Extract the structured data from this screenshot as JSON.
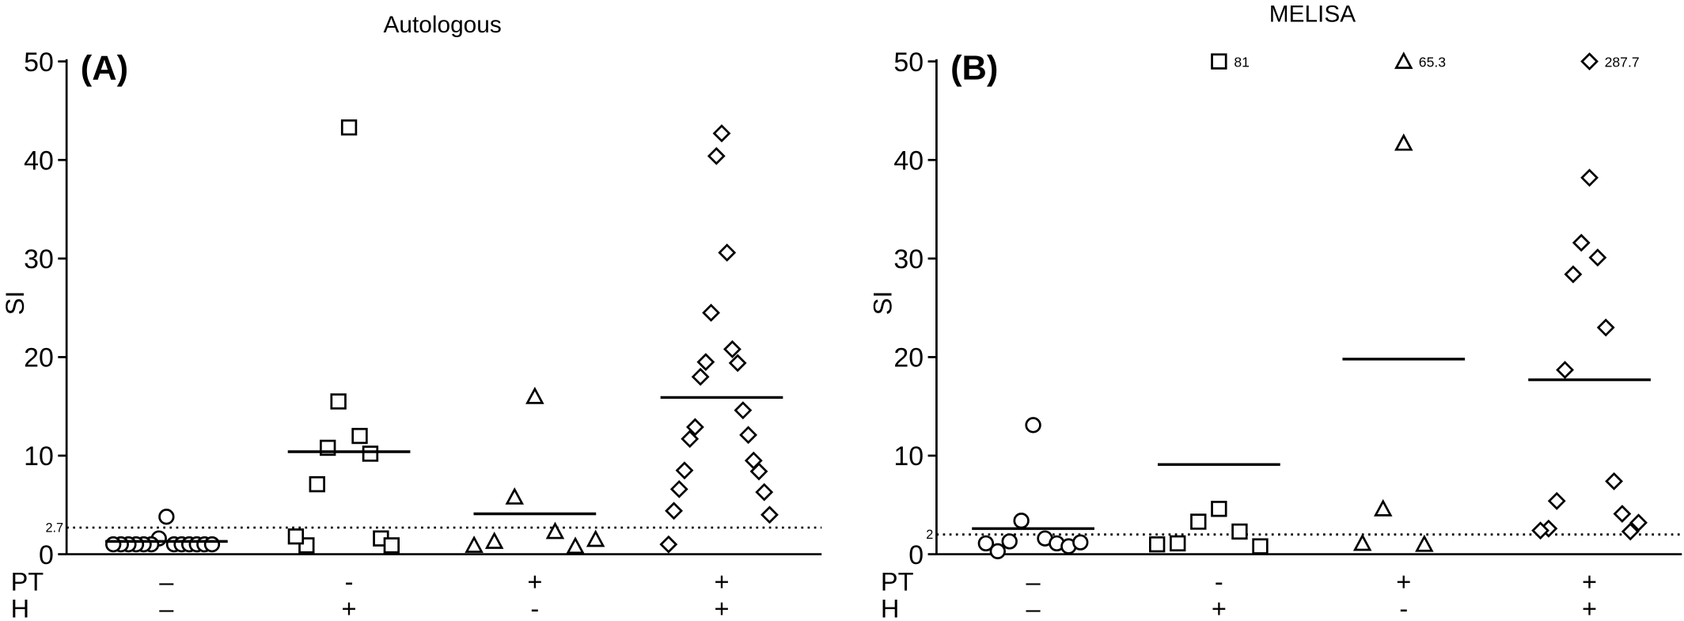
{
  "chart_data": [
    {
      "type": "scatter",
      "title": "Autologous",
      "panel_label": "(A)",
      "ylabel": "SI",
      "ylim": [
        0,
        50
      ],
      "yticks": [
        0,
        10,
        20,
        30,
        40,
        50
      ],
      "threshold": 2.7,
      "row_labels": [
        "PT",
        "H"
      ],
      "pt": [
        "–",
        "-",
        "+",
        "+"
      ],
      "h": [
        "–",
        "+",
        "-",
        "+"
      ],
      "groups": [
        {
          "marker": "circle",
          "values": [
            3.8,
            1.6,
            1.0,
            1.0,
            1.0,
            1.0,
            1.0,
            1.0,
            1.0,
            1.0,
            1.0,
            1.0,
            1.0,
            1.0
          ],
          "mean": 1.3
        },
        {
          "marker": "square",
          "values": [
            43.3,
            15.5,
            12.0,
            10.8,
            10.2,
            7.1,
            1.6,
            0.9,
            0.9,
            1.8
          ],
          "mean": 10.4
        },
        {
          "marker": "triangle",
          "values": [
            16.0,
            5.8,
            2.3,
            1.3,
            0.8,
            0.9,
            1.5
          ],
          "mean": 4.1
        },
        {
          "marker": "diamond",
          "values": [
            42.7,
            40.4,
            30.6,
            24.5,
            20.8,
            19.5,
            19.4,
            18.0,
            14.6,
            12.9,
            12.1,
            11.7,
            9.5,
            8.5,
            8.4,
            6.6,
            6.3,
            4.4,
            4.0,
            1.0
          ],
          "mean": 15.9
        }
      ],
      "off_scale": []
    },
    {
      "type": "scatter",
      "title": "MELISA",
      "panel_label": "(B)",
      "ylabel": "SI",
      "ylim": [
        0,
        50
      ],
      "yticks": [
        0,
        10,
        20,
        30,
        40,
        50
      ],
      "threshold": 2,
      "row_labels": [
        "PT",
        "H"
      ],
      "pt": [
        "–",
        "-",
        "+",
        "+"
      ],
      "h": [
        "–",
        "+",
        "-",
        "+"
      ],
      "groups": [
        {
          "marker": "circle",
          "values": [
            13.1,
            3.4,
            1.6,
            1.3,
            1.1,
            0.3,
            0.8,
            1.1,
            1.2
          ],
          "mean": 2.6
        },
        {
          "marker": "square",
          "values": [
            4.6,
            3.3,
            2.3,
            1.1,
            0.8,
            1.0
          ],
          "mean": 9.1
        },
        {
          "marker": "triangle",
          "values": [
            41.7,
            4.6,
            1.0,
            1.1
          ],
          "mean": 19.8
        },
        {
          "marker": "diamond",
          "values": [
            38.2,
            31.6,
            30.1,
            28.4,
            23.0,
            18.7,
            7.4,
            5.4,
            4.1,
            2.6,
            2.3,
            2.4,
            3.2
          ],
          "mean": 17.7
        }
      ],
      "off_scale": [
        {
          "category": 1,
          "value": 81
        },
        {
          "category": 2,
          "value": 65.3
        },
        {
          "category": 3,
          "value": 287.7
        }
      ]
    }
  ]
}
